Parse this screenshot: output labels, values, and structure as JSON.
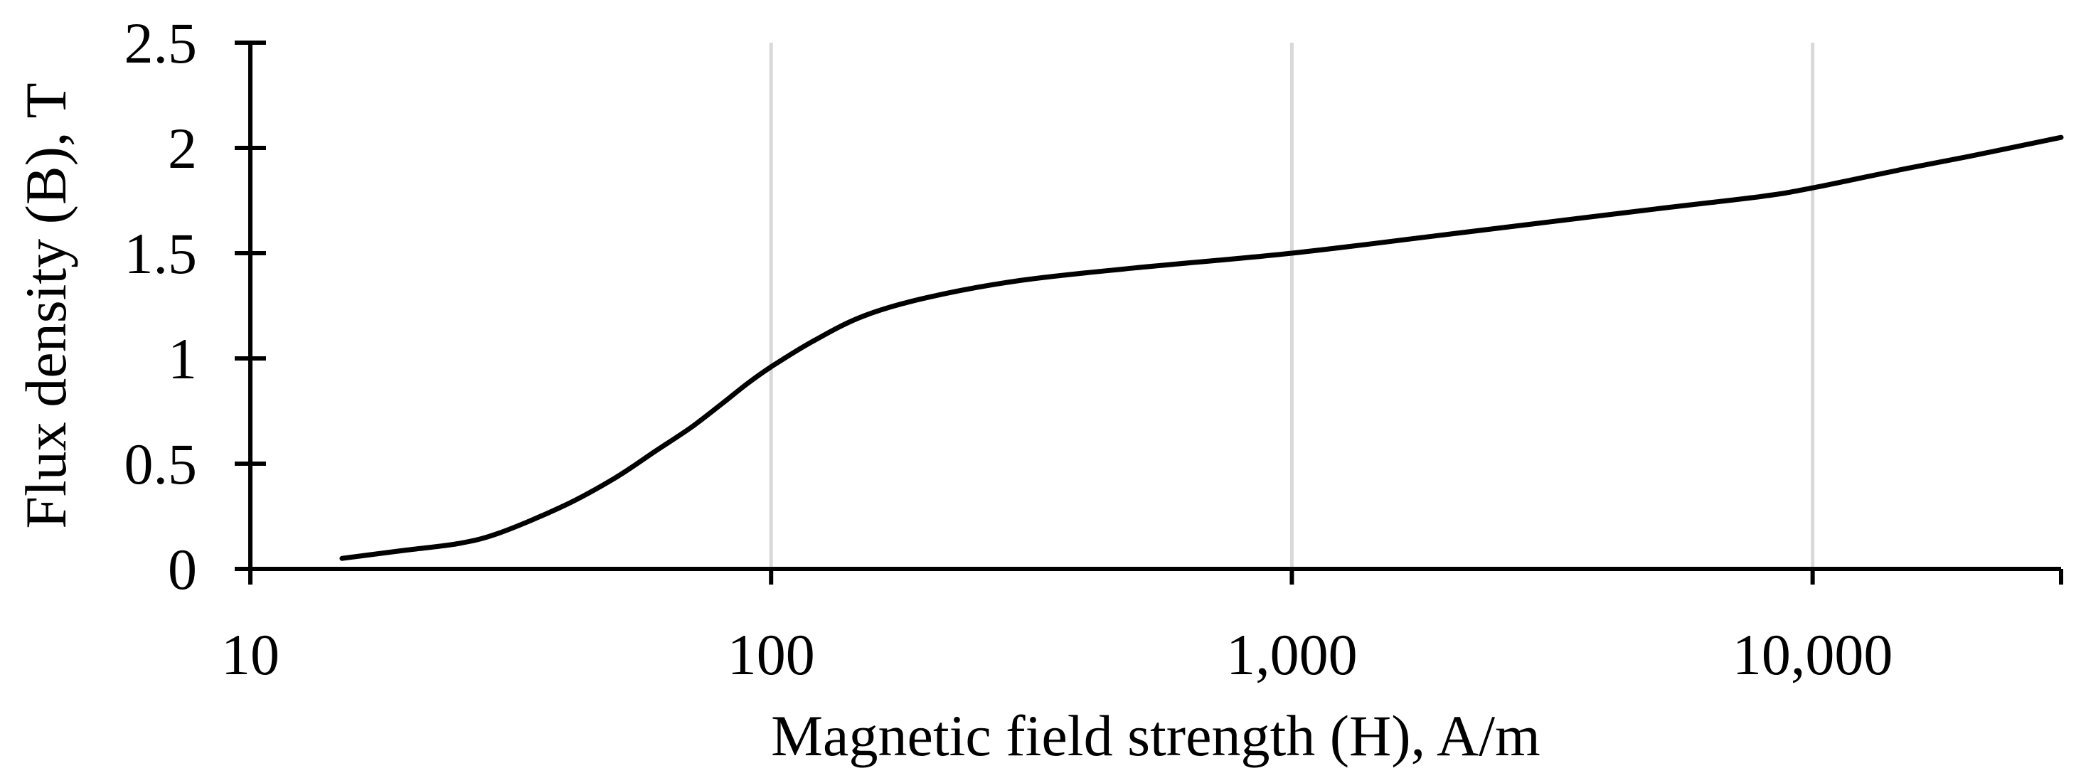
{
  "chart_data": {
    "type": "line",
    "title": "",
    "xlabel": "Magnetic field strength (H), A/m",
    "ylabel": "Flux density (B), T",
    "x_scale": "log",
    "xlim": [
      10,
      30000
    ],
    "ylim": [
      0,
      2.5
    ],
    "x_ticks": [
      10,
      100,
      1000,
      10000
    ],
    "x_tick_labels": [
      "10",
      "100",
      "1,000",
      "10,000"
    ],
    "y_ticks": [
      0,
      0.5,
      1,
      1.5,
      2,
      2.5
    ],
    "y_tick_labels": [
      "0",
      "0.5",
      "1",
      "1.5",
      "2",
      "2.5"
    ],
    "grid": "vertical major gridlines",
    "legend": "none",
    "colors": {
      "line": "#000000",
      "grid": "#d9d9d9",
      "axis": "#000000"
    },
    "series": [
      {
        "x": [
          15,
          20,
          25,
          30,
          40,
          50,
          60,
          70,
          80,
          90,
          100,
          120,
          150,
          200,
          300,
          500,
          1000,
          2000,
          5000,
          8000,
          10000,
          15000,
          20000,
          30000
        ],
        "y": [
          0.05,
          0.09,
          0.12,
          0.17,
          0.3,
          0.43,
          0.56,
          0.67,
          0.78,
          0.88,
          0.96,
          1.08,
          1.2,
          1.29,
          1.37,
          1.43,
          1.5,
          1.59,
          1.71,
          1.77,
          1.81,
          1.9,
          1.96,
          2.05
        ]
      }
    ]
  }
}
